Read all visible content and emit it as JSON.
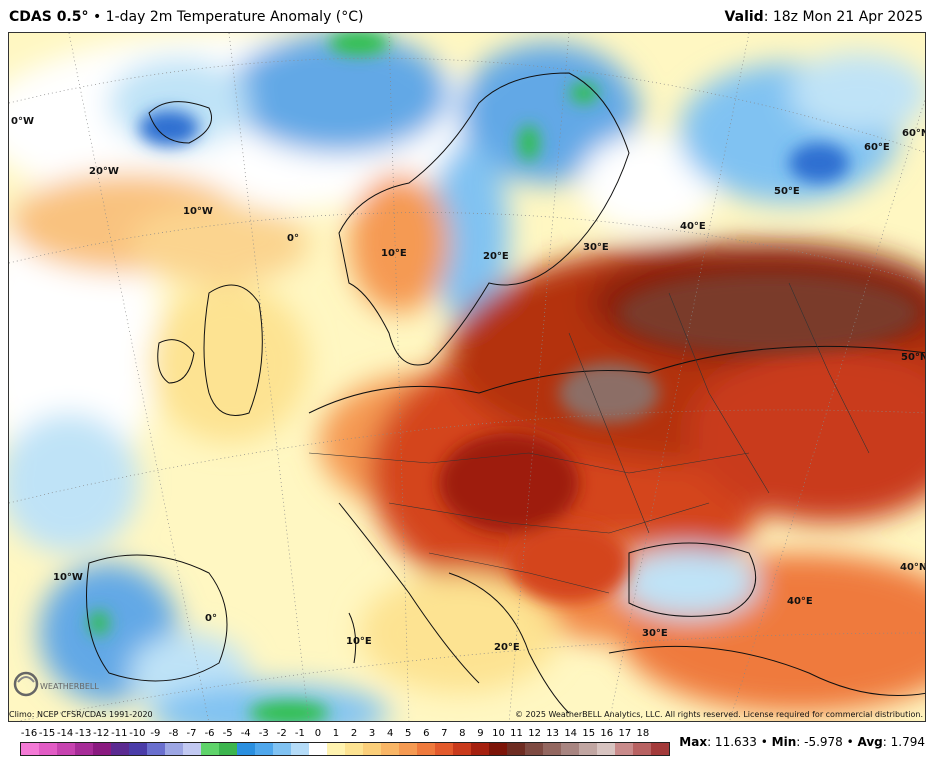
{
  "header": {
    "model": "CDAS 0.5",
    "degree": "°",
    "title_rest": " • 1-day 2m Temperature Anomaly (°C)",
    "valid_label": "Valid",
    "valid_value": ": 18z Mon 21 Apr 2025"
  },
  "map": {
    "lon_labels": [
      "0°W",
      "20°W",
      "10°W",
      "0°",
      "10°E",
      "20°E",
      "30°E",
      "40°E",
      "50°E",
      "60°E",
      "60°N",
      "50°N",
      "10°W",
      "0°",
      "10°E",
      "20°E",
      "30°E",
      "40°E",
      "40°N"
    ],
    "colors": {
      "far_background": "#fff7c2",
      "ocean_pale": "#ffffff",
      "light_blue": "#bfe3f7",
      "blue": "#62a8e6",
      "deep_blue": "#2f6fd1",
      "green": "#2ec04a",
      "yellow": "#ffe99a",
      "orange_light": "#f9c27f",
      "orange": "#f28a4a",
      "red": "#d4451e",
      "dark_red": "#9e1a0c",
      "brown": "#7a3a2c",
      "gray_brown": "#8c6e66"
    }
  },
  "footer": {
    "climo": "Climo: NCEP CFSR/CDAS 1991-2020",
    "copyright": "© 2025 WeatherBELL Analytics, LLC. All rights reserved. License required for commercial distribution.",
    "logo_text": "WEATHERBELL"
  },
  "scale": {
    "labels": [
      "-16",
      "-15",
      "-14",
      "-13",
      "-12",
      "-11",
      "-10",
      "-9",
      "-8",
      "-7",
      "-6",
      "-5",
      "-4",
      "-3",
      "-2",
      "-1",
      "0",
      "1",
      "2",
      "3",
      "4",
      "5",
      "6",
      "7",
      "8",
      "9",
      "10",
      "11",
      "12",
      "13",
      "14",
      "15",
      "16",
      "17",
      "18"
    ],
    "colors": [
      "#f47ad6",
      "#e25cc5",
      "#c743b0",
      "#a72c98",
      "#8a1a80",
      "#5b2a91",
      "#4a3ca8",
      "#6a6fce",
      "#9da6e4",
      "#c2c9f2",
      "#5fd36a",
      "#3cb54e",
      "#2a8fdf",
      "#4fa7ec",
      "#80c2f2",
      "#b5dcf8",
      "#ffffff",
      "#fff3b0",
      "#fde392",
      "#fbcf7a",
      "#f9b666",
      "#f59a52",
      "#ef7a3d",
      "#e35a2c",
      "#c93a1c",
      "#a5200f",
      "#7c1408",
      "#6e2c22",
      "#7e4a42",
      "#936760",
      "#a88581",
      "#c1a6a2",
      "#d8c4c1",
      "#c98b8b",
      "#b86262",
      "#a33a3a"
    ]
  },
  "stats": {
    "max_label": "Max",
    "max_value": ": 11.633 • ",
    "min_label": "Min",
    "min_value": ": -5.978 • ",
    "avg_label": "Avg",
    "avg_value": ": 1.794"
  }
}
